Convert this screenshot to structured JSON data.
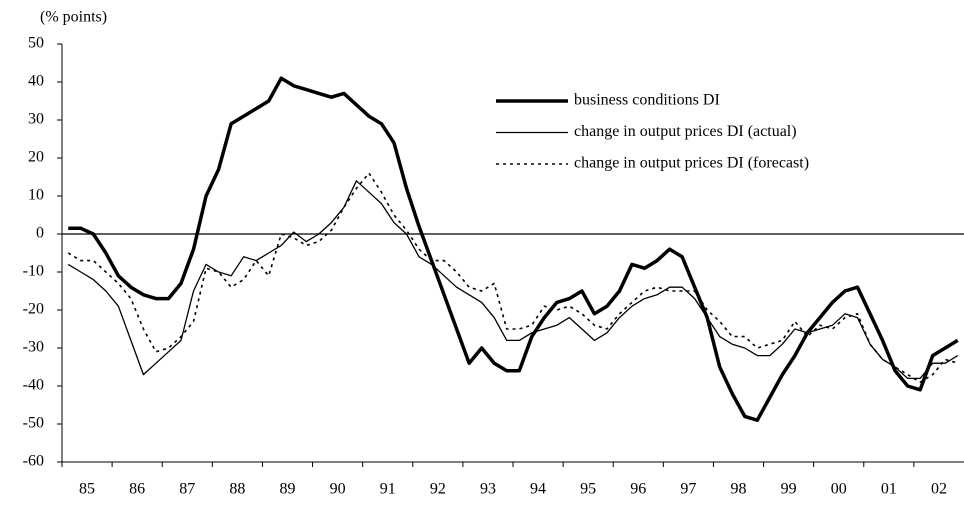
{
  "chart_data": {
    "type": "line",
    "y_axis_label": "(% points)",
    "x": [
      1985.125,
      1985.375,
      1985.625,
      1985.875,
      1986.125,
      1986.375,
      1986.625,
      1986.875,
      1987.125,
      1987.375,
      1987.625,
      1987.875,
      1988.125,
      1988.375,
      1988.625,
      1988.875,
      1989.125,
      1989.375,
      1989.625,
      1989.875,
      1990.125,
      1990.375,
      1990.625,
      1990.875,
      1991.125,
      1991.375,
      1991.625,
      1991.875,
      1992.125,
      1992.375,
      1992.625,
      1992.875,
      1993.125,
      1993.375,
      1993.625,
      1993.875,
      1994.125,
      1994.375,
      1994.625,
      1994.875,
      1995.125,
      1995.375,
      1995.625,
      1995.875,
      1996.125,
      1996.375,
      1996.625,
      1996.875,
      1997.125,
      1997.375,
      1997.625,
      1997.875,
      1998.125,
      1998.375,
      1998.625,
      1998.875,
      1999.125,
      1999.375,
      1999.625,
      1999.875,
      2000.125,
      2000.375,
      2000.625,
      2000.875,
      2001.125,
      2001.375,
      2001.625,
      2001.875,
      2002.125,
      2002.375,
      2002.625,
      2002.875
    ],
    "xlim": [
      1985,
      2003
    ],
    "xticks": [
      {
        "value": 1985.5,
        "label": "85"
      },
      {
        "value": 1986.5,
        "label": "86"
      },
      {
        "value": 1987.5,
        "label": "87"
      },
      {
        "value": 1988.5,
        "label": "88"
      },
      {
        "value": 1989.5,
        "label": "89"
      },
      {
        "value": 1990.5,
        "label": "90"
      },
      {
        "value": 1991.5,
        "label": "91"
      },
      {
        "value": 1992.5,
        "label": "92"
      },
      {
        "value": 1993.5,
        "label": "93"
      },
      {
        "value": 1994.5,
        "label": "94"
      },
      {
        "value": 1995.5,
        "label": "95"
      },
      {
        "value": 1996.5,
        "label": "96"
      },
      {
        "value": 1997.5,
        "label": "97"
      },
      {
        "value": 1998.5,
        "label": "98"
      },
      {
        "value": 1999.5,
        "label": "99"
      },
      {
        "value": 2000.5,
        "label": "00"
      },
      {
        "value": 2001.5,
        "label": "01"
      },
      {
        "value": 2002.5,
        "label": "02"
      }
    ],
    "ylim": [
      -60,
      50
    ],
    "yticks": [
      -60,
      -50,
      -40,
      -30,
      -20,
      -10,
      0,
      10,
      20,
      30,
      40,
      50
    ],
    "series": [
      {
        "name": "business conditions DI",
        "color": "#000000",
        "line_width": 3.5,
        "dash": "solid",
        "values": [
          1.5,
          1.5,
          0,
          -5,
          -11,
          -14,
          -16,
          -17,
          -17,
          -13,
          -4,
          10,
          17,
          29,
          31,
          33,
          35,
          41,
          39,
          38,
          37,
          36,
          37,
          34,
          31,
          29,
          24,
          12,
          2,
          -7,
          -16,
          -25,
          -34,
          -30,
          -34,
          -36,
          -36,
          -27,
          -22,
          -18,
          -17,
          -15,
          -21,
          -19,
          -15,
          -8,
          -9,
          -7,
          -4,
          -6,
          -14,
          -22,
          -35,
          -42,
          -48,
          -49,
          -43,
          -37,
          -32,
          -26,
          -22,
          -18,
          -15,
          -14,
          -21,
          -28,
          -36,
          -40,
          -41,
          -32,
          -30,
          -28
        ]
      },
      {
        "name": "change in output prices DI (actual)",
        "color": "#000000",
        "line_width": 1.3,
        "dash": "solid",
        "values": [
          -8,
          -10,
          -12,
          -15,
          -19,
          -28,
          -37,
          -34,
          -31,
          -28,
          -15,
          -8,
          -10,
          -11,
          -6,
          -7,
          -5,
          -3,
          0.5,
          -2,
          0,
          3,
          7,
          14,
          11,
          8,
          3,
          0,
          -6,
          -8,
          -11,
          -14,
          -16,
          -18,
          -22,
          -28,
          -28,
          -26,
          -25,
          -24,
          -22,
          -25,
          -28,
          -26,
          -22,
          -19,
          -17,
          -16,
          -14,
          -14,
          -17,
          -22,
          -27,
          -29,
          -30,
          -32,
          -32,
          -29,
          -25,
          -26,
          -25,
          -24,
          -21,
          -22,
          -29,
          -33,
          -35,
          -38,
          -38,
          -34,
          -34,
          -32
        ]
      },
      {
        "name": "change in output prices DI (forecast)",
        "color": "#000000",
        "line_width": 1.6,
        "dash": "dotted",
        "values": [
          -5,
          -7,
          -7,
          -10,
          -13,
          -17,
          -25,
          -31,
          -30,
          -27,
          -23,
          -9,
          -10,
          -14,
          -12,
          -7,
          -11,
          0,
          -1,
          -3,
          -2,
          1,
          7,
          12,
          16,
          11,
          5,
          1,
          -4,
          -7,
          -7,
          -10,
          -14,
          -15,
          -13,
          -25,
          -25,
          -24,
          -19,
          -20,
          -19,
          -21,
          -24,
          -25,
          -21,
          -18,
          -15,
          -14,
          -15,
          -15,
          -15,
          -20,
          -23,
          -27,
          -27,
          -30,
          -29,
          -28,
          -23,
          -27,
          -24,
          -25,
          -22,
          -21,
          -29,
          -33,
          -35,
          -37,
          -39,
          -37,
          -33,
          -34
        ]
      }
    ]
  }
}
